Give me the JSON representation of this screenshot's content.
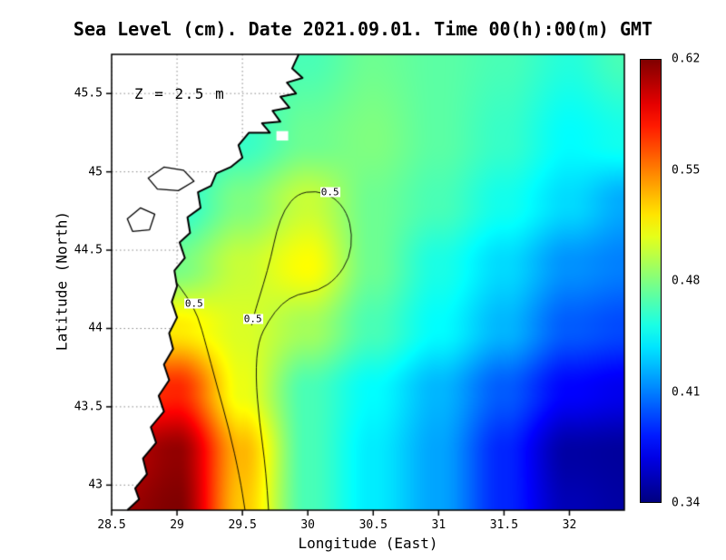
{
  "title": "Sea Level (cm). Date 2021.09.01. Time 00(h):00(m) GMT",
  "annotation": "Z = 2.5 m",
  "axes": {
    "xlabel": "Longitude (East)",
    "ylabel": "Latitude (North)",
    "x_ticks": [
      "28.5",
      "29",
      "29.5",
      "30",
      "30.5",
      "31",
      "31.5",
      "32"
    ],
    "y_ticks": [
      "43",
      "43.5",
      "44",
      "44.5",
      "45",
      "45.5"
    ]
  },
  "colorbar": {
    "labels": [
      "0.62",
      "0.55",
      "0.48",
      "0.41",
      "0.34"
    ],
    "min": 0.34,
    "max": 0.62
  },
  "colors": {
    "background": "#ffffff",
    "land": "#ffffff",
    "coast": "#000000",
    "grid": "#888888",
    "contour": "#000000",
    "frame": "#000000"
  },
  "chart_data": {
    "type": "heatmap",
    "title": "Sea Level (cm). Date 2021.09.01. Time 00(h):00(m) GMT",
    "field": "sea level",
    "depth_annotation": "Z = 2.5 m",
    "lon_range": [
      28.5,
      32.42
    ],
    "lat_range": [
      42.84,
      45.75
    ],
    "grid_lons": [
      28.5,
      29.0,
      29.5,
      30.0,
      30.5,
      31.0,
      31.5,
      32.0,
      32.42
    ],
    "grid_lats": [
      42.84,
      43.2,
      43.6,
      44.0,
      44.4,
      44.8,
      45.2,
      45.75
    ],
    "values": [
      [
        0.61,
        0.62,
        0.53,
        0.465,
        0.44,
        0.42,
        0.385,
        0.355,
        0.35
      ],
      [
        0.6,
        0.615,
        0.535,
        0.465,
        0.44,
        0.42,
        0.385,
        0.35,
        0.348
      ],
      [
        0.565,
        0.575,
        0.51,
        0.465,
        0.445,
        0.425,
        0.4,
        0.375,
        0.37
      ],
      [
        0.52,
        0.52,
        0.505,
        0.49,
        0.465,
        0.445,
        0.425,
        0.4,
        0.395
      ],
      [
        0.475,
        0.478,
        0.5,
        0.515,
        0.475,
        0.452,
        0.435,
        0.415,
        0.41
      ],
      [
        0.455,
        0.456,
        0.48,
        0.5,
        0.475,
        0.465,
        0.45,
        0.435,
        0.422
      ],
      [
        0.45,
        0.452,
        0.46,
        0.475,
        0.48,
        0.47,
        0.46,
        0.445,
        0.45
      ],
      [
        0.455,
        0.455,
        0.46,
        0.465,
        0.475,
        0.47,
        0.465,
        0.455,
        0.465
      ]
    ],
    "contour_level": 0.5,
    "contour_labels": [
      {
        "text": "0.5",
        "lon": 30.17,
        "lat": 44.87
      },
      {
        "text": "0.5",
        "lon": 29.13,
        "lat": 44.16
      },
      {
        "text": "0.5",
        "lon": 29.58,
        "lat": 44.06
      }
    ],
    "contours": [
      [
        [
          28.99,
          44.3
        ],
        [
          29.08,
          44.2
        ],
        [
          29.16,
          44.08
        ],
        [
          29.22,
          43.9
        ],
        [
          29.3,
          43.65
        ],
        [
          29.4,
          43.35
        ],
        [
          29.48,
          43.05
        ],
        [
          29.52,
          42.84
        ]
      ],
      [
        [
          29.7,
          42.84
        ],
        [
          29.68,
          43.1
        ],
        [
          29.63,
          43.4
        ],
        [
          29.6,
          43.7
        ],
        [
          29.62,
          43.92
        ],
        [
          29.7,
          44.05
        ],
        [
          29.8,
          44.16
        ],
        [
          29.92,
          44.22
        ],
        [
          30.08,
          44.24
        ],
        [
          30.22,
          44.32
        ],
        [
          30.32,
          44.45
        ],
        [
          30.34,
          44.6
        ],
        [
          30.3,
          44.74
        ],
        [
          30.2,
          44.84
        ],
        [
          30.06,
          44.88
        ],
        [
          29.92,
          44.86
        ],
        [
          29.82,
          44.76
        ],
        [
          29.76,
          44.62
        ],
        [
          29.72,
          44.46
        ],
        [
          29.66,
          44.28
        ],
        [
          29.6,
          44.12
        ],
        [
          29.57,
          44.02
        ]
      ]
    ],
    "coastline": [
      [
        29.93,
        45.75
      ],
      [
        29.88,
        45.66
      ],
      [
        29.96,
        45.6
      ],
      [
        29.84,
        45.57
      ],
      [
        29.91,
        45.5
      ],
      [
        29.79,
        45.48
      ],
      [
        29.86,
        45.41
      ],
      [
        29.73,
        45.39
      ],
      [
        29.79,
        45.32
      ],
      [
        29.65,
        45.31
      ],
      [
        29.71,
        45.25
      ],
      [
        29.55,
        45.25
      ],
      [
        29.47,
        45.17
      ],
      [
        29.5,
        45.09
      ],
      [
        29.41,
        45.03
      ],
      [
        29.3,
        44.99
      ],
      [
        29.26,
        44.91
      ],
      [
        29.16,
        44.87
      ],
      [
        29.18,
        44.77
      ],
      [
        29.08,
        44.71
      ],
      [
        29.1,
        44.61
      ],
      [
        29.02,
        44.55
      ],
      [
        29.06,
        44.45
      ],
      [
        28.98,
        44.37
      ],
      [
        29.0,
        44.27
      ],
      [
        28.96,
        44.17
      ],
      [
        29.0,
        44.07
      ],
      [
        28.94,
        43.97
      ],
      [
        28.97,
        43.87
      ],
      [
        28.9,
        43.77
      ],
      [
        28.94,
        43.67
      ],
      [
        28.86,
        43.57
      ],
      [
        28.9,
        43.47
      ],
      [
        28.8,
        43.37
      ],
      [
        28.84,
        43.27
      ],
      [
        28.74,
        43.17
      ],
      [
        28.77,
        43.07
      ],
      [
        28.68,
        42.98
      ],
      [
        28.71,
        42.91
      ],
      [
        28.62,
        42.84
      ]
    ],
    "lakes": [
      [
        [
          28.78,
          44.96
        ],
        [
          28.9,
          45.03
        ],
        [
          29.05,
          45.01
        ],
        [
          29.13,
          44.94
        ],
        [
          29.01,
          44.88
        ],
        [
          28.85,
          44.89
        ]
      ],
      [
        [
          28.62,
          44.7
        ],
        [
          28.72,
          44.77
        ],
        [
          28.83,
          44.73
        ],
        [
          28.79,
          44.63
        ],
        [
          28.66,
          44.62
        ]
      ]
    ],
    "islands": [
      {
        "lon": 29.69,
        "lat": 45.47,
        "w": 0.1,
        "h": 0.06
      },
      {
        "lon": 29.76,
        "lat": 45.26,
        "w": 0.09,
        "h": 0.06
      }
    ]
  }
}
